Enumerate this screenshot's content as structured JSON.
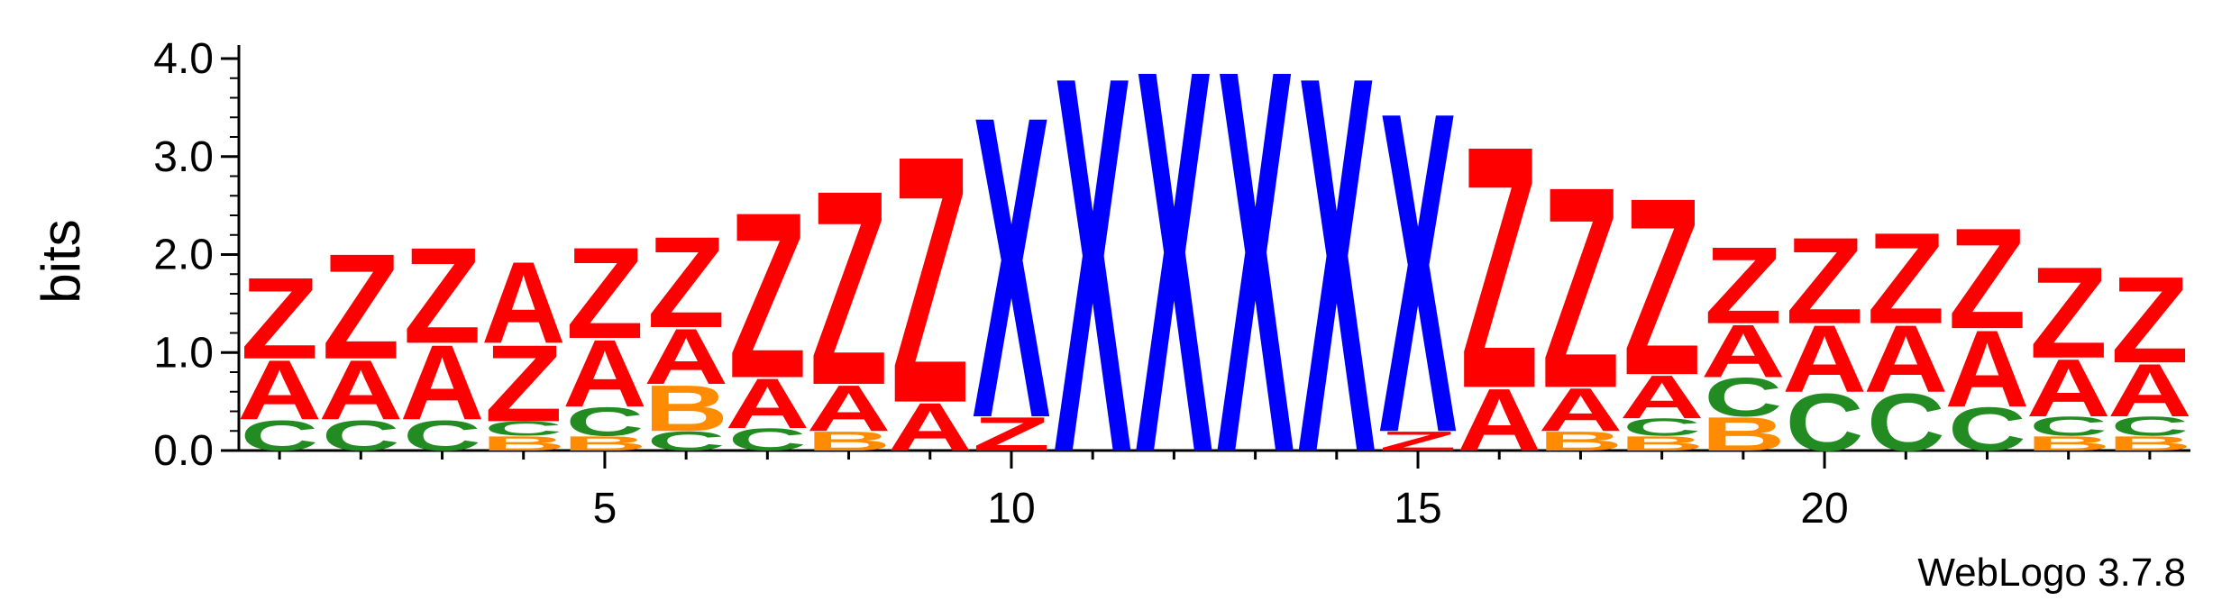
{
  "chart_data": {
    "type": "sequence-logo",
    "ylabel": "bits",
    "ylim": [
      0,
      4.0
    ],
    "y_ticks": [
      "0.0",
      "1.0",
      "2.0",
      "3.0",
      "4.0"
    ],
    "x_ticks": [
      "5",
      "10",
      "15",
      "20"
    ],
    "x_tick_positions": [
      5,
      10,
      15,
      20
    ],
    "colors": {
      "Z": "#ff0000",
      "A": "#ff0000",
      "C": "#228b22",
      "B": "#ff8c00",
      "X": "#0000ff"
    },
    "positions": [
      {
        "pos": 1,
        "stack": [
          {
            "letter": "C",
            "bits": 0.32
          },
          {
            "letter": "A",
            "bits": 0.62
          },
          {
            "letter": "Z",
            "bits": 0.85
          }
        ]
      },
      {
        "pos": 2,
        "stack": [
          {
            "letter": "C",
            "bits": 0.32
          },
          {
            "letter": "A",
            "bits": 0.62
          },
          {
            "letter": "Z",
            "bits": 1.1
          }
        ]
      },
      {
        "pos": 3,
        "stack": [
          {
            "letter": "C",
            "bits": 0.32
          },
          {
            "letter": "A",
            "bits": 0.78
          },
          {
            "letter": "Z",
            "bits": 1.0
          }
        ]
      },
      {
        "pos": 4,
        "stack": [
          {
            "letter": "B",
            "bits": 0.15
          },
          {
            "letter": "C",
            "bits": 0.15
          },
          {
            "letter": "Z",
            "bits": 0.8
          },
          {
            "letter": "A",
            "bits": 0.85
          }
        ]
      },
      {
        "pos": 5,
        "stack": [
          {
            "letter": "B",
            "bits": 0.15
          },
          {
            "letter": "C",
            "bits": 0.3
          },
          {
            "letter": "A",
            "bits": 0.7
          },
          {
            "letter": "Z",
            "bits": 0.95
          }
        ]
      },
      {
        "pos": 6,
        "stack": [
          {
            "letter": "C",
            "bits": 0.2
          },
          {
            "letter": "B",
            "bits": 0.48
          },
          {
            "letter": "A",
            "bits": 0.58
          },
          {
            "letter": "Z",
            "bits": 0.95
          }
        ]
      },
      {
        "pos": 7,
        "stack": [
          {
            "letter": "C",
            "bits": 0.23
          },
          {
            "letter": "A",
            "bits": 0.52
          },
          {
            "letter": "Z",
            "bits": 1.73
          }
        ]
      },
      {
        "pos": 8,
        "stack": [
          {
            "letter": "B",
            "bits": 0.2
          },
          {
            "letter": "A",
            "bits": 0.48
          },
          {
            "letter": "Z",
            "bits": 2.03
          }
        ]
      },
      {
        "pos": 9,
        "stack": [
          {
            "letter": "A",
            "bits": 0.5
          },
          {
            "letter": "Z",
            "bits": 2.58
          }
        ]
      },
      {
        "pos": 10,
        "stack": [
          {
            "letter": "Z",
            "bits": 0.35
          },
          {
            "letter": "X",
            "bits": 3.15
          }
        ]
      },
      {
        "pos": 11,
        "stack": [
          {
            "letter": "X",
            "bits": 3.93
          }
        ]
      },
      {
        "pos": 12,
        "stack": [
          {
            "letter": "X",
            "bits": 4.0
          }
        ]
      },
      {
        "pos": 13,
        "stack": [
          {
            "letter": "X",
            "bits": 4.0
          }
        ]
      },
      {
        "pos": 14,
        "stack": [
          {
            "letter": "X",
            "bits": 3.93
          }
        ]
      },
      {
        "pos": 15,
        "stack": [
          {
            "letter": "Z",
            "bits": 0.2
          },
          {
            "letter": "X",
            "bits": 3.35
          }
        ]
      },
      {
        "pos": 16,
        "stack": [
          {
            "letter": "A",
            "bits": 0.65
          },
          {
            "letter": "Z",
            "bits": 2.53
          }
        ]
      },
      {
        "pos": 17,
        "stack": [
          {
            "letter": "B",
            "bits": 0.2
          },
          {
            "letter": "A",
            "bits": 0.45
          },
          {
            "letter": "Z",
            "bits": 2.1
          }
        ]
      },
      {
        "pos": 18,
        "stack": [
          {
            "letter": "B",
            "bits": 0.15
          },
          {
            "letter": "C",
            "bits": 0.18
          },
          {
            "letter": "A",
            "bits": 0.45
          },
          {
            "letter": "Z",
            "bits": 1.85
          }
        ]
      },
      {
        "pos": 19,
        "stack": [
          {
            "letter": "B",
            "bits": 0.35
          },
          {
            "letter": "C",
            "bits": 0.4
          },
          {
            "letter": "A",
            "bits": 0.55
          },
          {
            "letter": "Z",
            "bits": 0.8
          }
        ]
      },
      {
        "pos": 20,
        "stack": [
          {
            "letter": "C",
            "bits": 0.6
          },
          {
            "letter": "A",
            "bits": 0.7
          },
          {
            "letter": "Z",
            "bits": 0.9
          }
        ]
      },
      {
        "pos": 21,
        "stack": [
          {
            "letter": "C",
            "bits": 0.6
          },
          {
            "letter": "A",
            "bits": 0.7
          },
          {
            "letter": "Z",
            "bits": 0.95
          }
        ]
      },
      {
        "pos": 22,
        "stack": [
          {
            "letter": "C",
            "bits": 0.45
          },
          {
            "letter": "A",
            "bits": 0.8
          },
          {
            "letter": "Z",
            "bits": 1.05
          }
        ]
      },
      {
        "pos": 23,
        "stack": [
          {
            "letter": "B",
            "bits": 0.15
          },
          {
            "letter": "C",
            "bits": 0.2
          },
          {
            "letter": "A",
            "bits": 0.6
          },
          {
            "letter": "Z",
            "bits": 0.95
          }
        ]
      },
      {
        "pos": 24,
        "stack": [
          {
            "letter": "B",
            "bits": 0.15
          },
          {
            "letter": "C",
            "bits": 0.2
          },
          {
            "letter": "A",
            "bits": 0.55
          },
          {
            "letter": "Z",
            "bits": 0.9
          }
        ]
      }
    ]
  },
  "credit": "WebLogo 3.7.8"
}
